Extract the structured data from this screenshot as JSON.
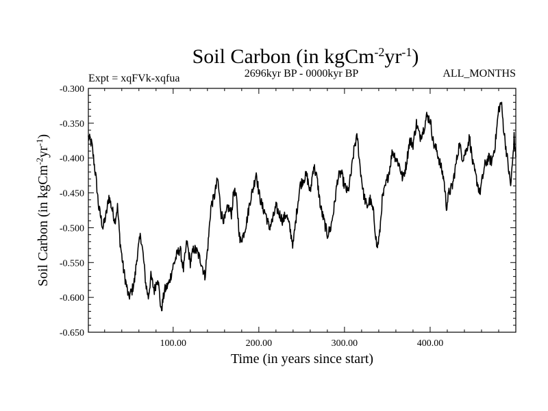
{
  "chart_data": {
    "type": "line",
    "title": "Soil Carbon (in kgCm",
    "title_sup1": "-2",
    "title_mid": "yr",
    "title_sup2": "-1",
    "title_end": ")",
    "left_subtitle": "Expt = xqFVk-xqfua",
    "center_subtitle": "2696kyr BP - 0000kyr BP",
    "right_subtitle": "ALL_MONTHS",
    "xlabel": "Time (in years since start)",
    "ylabel": {
      "main": "Soil Carbon (in kgCm",
      "sup1": "-2",
      "mid": "yr",
      "sup2": "-1",
      "end": ")"
    },
    "xlim": [
      1,
      500
    ],
    "ylim": [
      -0.65,
      -0.3
    ],
    "xticks": [
      100,
      200,
      300,
      400
    ],
    "xtick_labels": [
      "100.00",
      "200.00",
      "300.00",
      "400.00"
    ],
    "yticks": [
      -0.3,
      -0.35,
      -0.4,
      -0.45,
      -0.5,
      -0.55,
      -0.6,
      -0.65
    ],
    "ytick_labels": [
      "-0.300",
      "-0.350",
      "-0.400",
      "-0.450",
      "-0.500",
      "-0.550",
      "-0.600",
      "-0.650"
    ],
    "grid": false,
    "series": [
      {
        "name": "Soil Carbon",
        "color": "#000000",
        "anchors": [
          [
            1,
            -0.37
          ],
          [
            5,
            -0.38
          ],
          [
            10,
            -0.43
          ],
          [
            13,
            -0.47
          ],
          [
            18,
            -0.5
          ],
          [
            22,
            -0.48
          ],
          [
            25,
            -0.455
          ],
          [
            28,
            -0.47
          ],
          [
            32,
            -0.49
          ],
          [
            35,
            -0.47
          ],
          [
            38,
            -0.52
          ],
          [
            42,
            -0.56
          ],
          [
            45,
            -0.58
          ],
          [
            48,
            -0.6
          ],
          [
            52,
            -0.59
          ],
          [
            55,
            -0.575
          ],
          [
            58,
            -0.54
          ],
          [
            62,
            -0.51
          ],
          [
            65,
            -0.54
          ],
          [
            68,
            -0.58
          ],
          [
            71,
            -0.6
          ],
          [
            74,
            -0.57
          ],
          [
            78,
            -0.59
          ],
          [
            82,
            -0.57
          ],
          [
            86,
            -0.62
          ],
          [
            90,
            -0.59
          ],
          [
            95,
            -0.58
          ],
          [
            100,
            -0.555
          ],
          [
            104,
            -0.54
          ],
          [
            108,
            -0.53
          ],
          [
            112,
            -0.56
          ],
          [
            116,
            -0.52
          ],
          [
            120,
            -0.55
          ],
          [
            124,
            -0.53
          ],
          [
            128,
            -0.535
          ],
          [
            133,
            -0.55
          ],
          [
            137,
            -0.57
          ],
          [
            141,
            -0.52
          ],
          [
            144,
            -0.47
          ],
          [
            148,
            -0.455
          ],
          [
            152,
            -0.43
          ],
          [
            156,
            -0.48
          ],
          [
            160,
            -0.49
          ],
          [
            164,
            -0.47
          ],
          [
            168,
            -0.48
          ],
          [
            171,
            -0.445
          ],
          [
            174,
            -0.46
          ],
          [
            178,
            -0.52
          ],
          [
            182,
            -0.51
          ],
          [
            186,
            -0.49
          ],
          [
            190,
            -0.46
          ],
          [
            194,
            -0.44
          ],
          [
            197,
            -0.42
          ],
          [
            200,
            -0.45
          ],
          [
            204,
            -0.47
          ],
          [
            208,
            -0.48
          ],
          [
            212,
            -0.5
          ],
          [
            216,
            -0.49
          ],
          [
            220,
            -0.47
          ],
          [
            224,
            -0.48
          ],
          [
            228,
            -0.49
          ],
          [
            232,
            -0.48
          ],
          [
            236,
            -0.5
          ],
          [
            240,
            -0.525
          ],
          [
            244,
            -0.48
          ],
          [
            248,
            -0.44
          ],
          [
            252,
            -0.43
          ],
          [
            256,
            -0.425
          ],
          [
            260,
            -0.45
          ],
          [
            264,
            -0.41
          ],
          [
            268,
            -0.43
          ],
          [
            272,
            -0.47
          ],
          [
            276,
            -0.49
          ],
          [
            280,
            -0.51
          ],
          [
            284,
            -0.5
          ],
          [
            288,
            -0.47
          ],
          [
            292,
            -0.43
          ],
          [
            296,
            -0.42
          ],
          [
            300,
            -0.44
          ],
          [
            304,
            -0.45
          ],
          [
            308,
            -0.42
          ],
          [
            312,
            -0.38
          ],
          [
            315,
            -0.37
          ],
          [
            318,
            -0.41
          ],
          [
            322,
            -0.45
          ],
          [
            326,
            -0.47
          ],
          [
            330,
            -0.46
          ],
          [
            334,
            -0.48
          ],
          [
            338,
            -0.53
          ],
          [
            341,
            -0.51
          ],
          [
            344,
            -0.46
          ],
          [
            348,
            -0.44
          ],
          [
            352,
            -0.42
          ],
          [
            356,
            -0.39
          ],
          [
            360,
            -0.4
          ],
          [
            364,
            -0.41
          ],
          [
            368,
            -0.43
          ],
          [
            372,
            -0.41
          ],
          [
            376,
            -0.375
          ],
          [
            380,
            -0.38
          ],
          [
            384,
            -0.35
          ],
          [
            388,
            -0.37
          ],
          [
            392,
            -0.36
          ],
          [
            396,
            -0.34
          ],
          [
            400,
            -0.345
          ],
          [
            404,
            -0.38
          ],
          [
            408,
            -0.39
          ],
          [
            412,
            -0.41
          ],
          [
            416,
            -0.43
          ],
          [
            419,
            -0.47
          ],
          [
            422,
            -0.45
          ],
          [
            426,
            -0.44
          ],
          [
            430,
            -0.41
          ],
          [
            434,
            -0.38
          ],
          [
            438,
            -0.4
          ],
          [
            442,
            -0.39
          ],
          [
            446,
            -0.37
          ],
          [
            450,
            -0.41
          ],
          [
            454,
            -0.43
          ],
          [
            458,
            -0.45
          ],
          [
            461,
            -0.43
          ],
          [
            464,
            -0.41
          ],
          [
            468,
            -0.4
          ],
          [
            472,
            -0.405
          ],
          [
            476,
            -0.38
          ],
          [
            480,
            -0.33
          ],
          [
            483,
            -0.32
          ],
          [
            486,
            -0.36
          ],
          [
            489,
            -0.39
          ],
          [
            492,
            -0.42
          ],
          [
            494,
            -0.44
          ],
          [
            496,
            -0.41
          ],
          [
            498,
            -0.37
          ],
          [
            500,
            -0.4
          ]
        ]
      }
    ]
  }
}
